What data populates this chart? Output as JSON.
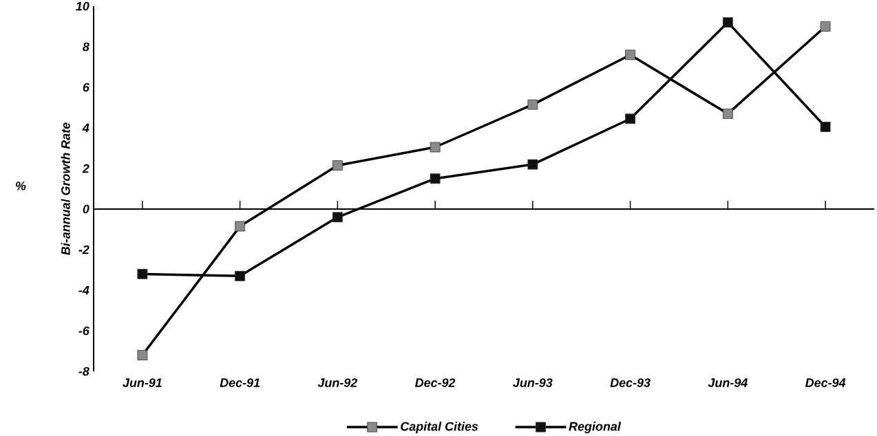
{
  "chart_data": {
    "type": "line",
    "ylabel": "Bi-annual Growth Rate",
    "annotations": [
      "%"
    ],
    "categories": [
      "Jun-91",
      "Dec-91",
      "Jun-92",
      "Dec-92",
      "Jun-93",
      "Dec-93",
      "Jun-94",
      "Dec-94"
    ],
    "series": [
      {
        "name": "Capital Cities",
        "color": "#8a8a8a",
        "values": [
          -7.2,
          -0.85,
          2.15,
          3.05,
          5.15,
          7.6,
          4.7,
          9.0
        ]
      },
      {
        "name": "Regional",
        "color": "#111111",
        "values": [
          -3.2,
          -3.3,
          -0.4,
          1.5,
          2.2,
          4.45,
          9.2,
          4.05
        ]
      }
    ],
    "ylim": [
      -8,
      10
    ],
    "yticks": [
      -8,
      -6,
      -4,
      -2,
      0,
      2,
      4,
      6,
      8,
      10
    ],
    "marker": "square",
    "line_style": "solid",
    "legend": "bottom"
  }
}
